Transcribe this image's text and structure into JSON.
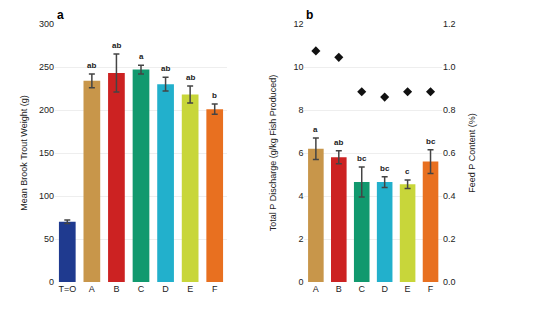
{
  "chart_data": [
    {
      "type": "bar",
      "title": "a",
      "categories": [
        "T=O",
        "A",
        "B",
        "C",
        "D",
        "E",
        "F"
      ],
      "values": [
        70,
        234,
        243,
        247,
        230,
        218,
        201
      ],
      "errors": [
        2,
        8,
        22,
        5,
        8,
        10,
        6
      ],
      "colors": [
        "#1f3a8f",
        "#c8964a",
        "#cc2222",
        "#11996e",
        "#22b0cc",
        "#c8d63a",
        "#e87020"
      ],
      "annotations": [
        {
          "x": "A",
          "text": "ab"
        },
        {
          "x": "B",
          "text": "ab"
        },
        {
          "x": "C",
          "text": "a"
        },
        {
          "x": "D",
          "text": "ab"
        },
        {
          "x": "E",
          "text": "ab"
        },
        {
          "x": "F",
          "text": "b"
        }
      ],
      "ylabel": "Mean Brook Trout Weight (g)",
      "ylim": [
        0,
        300
      ],
      "yticks": [
        0,
        50,
        100,
        150,
        200,
        250,
        300
      ],
      "grid": true
    },
    {
      "type": "bar",
      "title": "b",
      "categories": [
        "A",
        "B",
        "C",
        "D",
        "E",
        "F"
      ],
      "series": [
        {
          "type": "bar",
          "values": [
            6.2,
            5.8,
            4.65,
            4.65,
            4.55,
            5.6
          ],
          "errors": [
            0.5,
            0.3,
            0.7,
            0.25,
            0.2,
            0.55
          ],
          "colors": [
            "#c8964a",
            "#cc2222",
            "#11996e",
            "#22b0cc",
            "#c8d63a",
            "#e87020"
          ]
        },
        {
          "type": "scatter",
          "axis": "y2",
          "values": [
            1.075,
            1.045,
            0.885,
            0.86,
            0.885,
            0.885
          ],
          "color": "#111111",
          "marker": "diamond"
        }
      ],
      "annotations": [
        {
          "x": "A",
          "text": "a"
        },
        {
          "x": "B",
          "text": "ab"
        },
        {
          "x": "C",
          "text": "bc"
        },
        {
          "x": "D",
          "text": "bc"
        },
        {
          "x": "E",
          "text": "c"
        },
        {
          "x": "F",
          "text": "bc"
        }
      ],
      "ylabel": "Total P Discharge (g/kg Fish Produced)",
      "y2label": "Feed P Content (%)",
      "ylim": [
        0,
        12
      ],
      "yticks": [
        0,
        2,
        4,
        6,
        8,
        10,
        12
      ],
      "y2lim": [
        0,
        1.2
      ],
      "y2ticks": [
        {
          "value": 0,
          "label": "0.0"
        },
        0.2,
        0.4,
        0.6,
        0.8,
        {
          "value": 1.0,
          "label": "1.0"
        },
        1.2
      ],
      "grid": true
    }
  ]
}
